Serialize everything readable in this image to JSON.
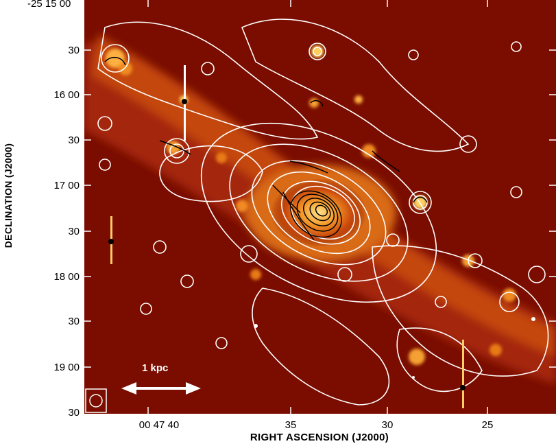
{
  "axes": {
    "xlabel": "RIGHT ASCENSION (J2000)",
    "ylabel": "DECLINATION (J2000)",
    "y_ticks": [
      "-25 15 00",
      "30",
      "16 00",
      "30",
      "17 00",
      "30",
      "18 00",
      "30",
      "19 00",
      "30"
    ],
    "x_ticks": [
      "00 47 40",
      "35",
      "30",
      "25"
    ]
  },
  "scale_bar": {
    "label": "1 kpc"
  },
  "colors": {
    "background": "#7a0d00",
    "emission_mid": "#d85a10",
    "emission_bright": "#ffd060",
    "contours_white": "#ffffff",
    "contours_black": "#000000"
  }
}
